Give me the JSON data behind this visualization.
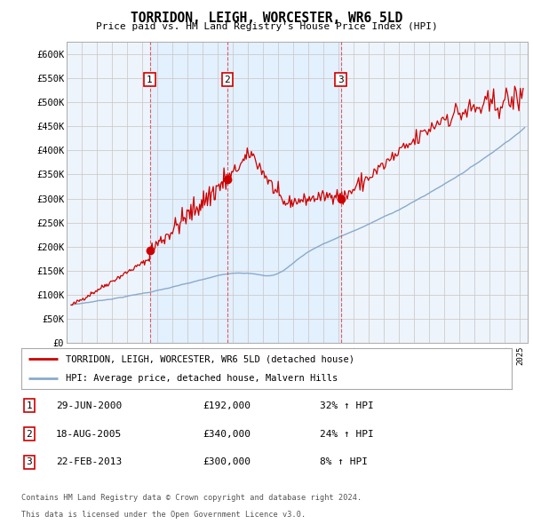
{
  "title": "TORRIDON, LEIGH, WORCESTER, WR6 5LD",
  "subtitle": "Price paid vs. HM Land Registry's House Price Index (HPI)",
  "ylabel_ticks": [
    "£0",
    "£50K",
    "£100K",
    "£150K",
    "£200K",
    "£250K",
    "£300K",
    "£350K",
    "£400K",
    "£450K",
    "£500K",
    "£550K",
    "£600K"
  ],
  "ytick_values": [
    0,
    50000,
    100000,
    150000,
    200000,
    250000,
    300000,
    350000,
    400000,
    450000,
    500000,
    550000,
    600000
  ],
  "ylim": [
    0,
    625000
  ],
  "xlim_start": 1995.3,
  "xlim_end": 2025.5,
  "property_color": "#cc0000",
  "hpi_color": "#88aacc",
  "grid_color": "#cccccc",
  "vline_color": "#dd4444",
  "sale_dates_decimal": [
    2000.497,
    2005.635,
    2013.138
  ],
  "sale_prices": [
    192000,
    340000,
    300000
  ],
  "sale_labels": [
    "1",
    "2",
    "3"
  ],
  "legend_property": "TORRIDON, LEIGH, WORCESTER, WR6 5LD (detached house)",
  "legend_hpi": "HPI: Average price, detached house, Malvern Hills",
  "table_rows": [
    [
      "1",
      "29-JUN-2000",
      "£192,000",
      "32% ↑ HPI"
    ],
    [
      "2",
      "18-AUG-2005",
      "£340,000",
      "24% ↑ HPI"
    ],
    [
      "3",
      "22-FEB-2013",
      "£300,000",
      "8% ↑ HPI"
    ]
  ],
  "footnote1": "Contains HM Land Registry data © Crown copyright and database right 2024.",
  "footnote2": "This data is licensed under the Open Government Licence v3.0.",
  "background_color": "#ffffff",
  "plot_bg_color": "#ddeeff",
  "plot_bg_color2": "#eef4fb"
}
